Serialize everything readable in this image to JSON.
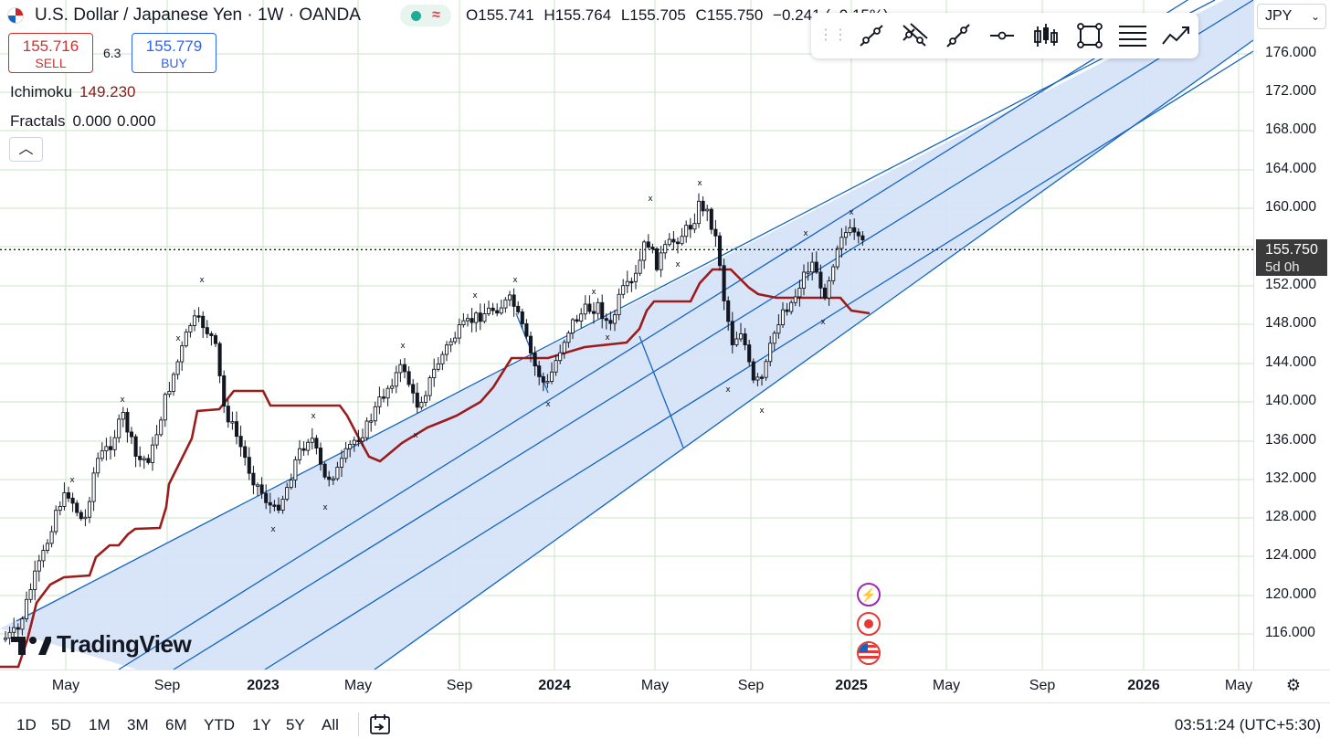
{
  "header": {
    "symbol_title": "U.S. Dollar / Japanese Yen · 1W · OANDA",
    "ohlc": {
      "o_label": "O",
      "o": "155.741",
      "h_label": "H",
      "h": "155.764",
      "l_label": "L",
      "l": "155.705",
      "c_label": "C",
      "c": "155.750",
      "change": "−0.241 (−0.15%)"
    }
  },
  "trade": {
    "sell_price": "155.716",
    "sell_label": "SELL",
    "spread": "6.3",
    "buy_price": "155.779",
    "buy_label": "BUY"
  },
  "indicators": [
    {
      "name": "Ichimoku",
      "value": "149.230"
    },
    {
      "name": "Fractals",
      "value1": "0.000",
      "value2": "0.000"
    }
  ],
  "drawing_toolbar": {
    "tools": [
      "trend-line-icon",
      "parallel-channel-icon",
      "ray-icon",
      "horizontal-ray-icon",
      "candles-icon",
      "rectangle-icon",
      "fib-lines-icon",
      "forecast-icon"
    ]
  },
  "price_axis": {
    "currency": "JPY",
    "labels": [
      "176.000",
      "172.000",
      "168.000",
      "164.000",
      "160.000",
      "152.000",
      "148.000",
      "144.000",
      "140.000",
      "136.000",
      "132.000",
      "128.000",
      "124.000",
      "120.000",
      "116.000"
    ],
    "current_price": "155.750",
    "countdown": "5d 0h"
  },
  "time_axis": {
    "labels": [
      {
        "t": "May",
        "bold": false
      },
      {
        "t": "Sep",
        "bold": false
      },
      {
        "t": "2023",
        "bold": true
      },
      {
        "t": "May",
        "bold": false
      },
      {
        "t": "Sep",
        "bold": false
      },
      {
        "t": "2024",
        "bold": true
      },
      {
        "t": "May",
        "bold": false
      },
      {
        "t": "Sep",
        "bold": false
      },
      {
        "t": "2025",
        "bold": true
      },
      {
        "t": "May",
        "bold": false
      },
      {
        "t": "Sep",
        "bold": false
      },
      {
        "t": "2026",
        "bold": true
      },
      {
        "t": "May",
        "bold": false
      }
    ]
  },
  "ranges": [
    "1D",
    "5D",
    "1M",
    "3M",
    "6M",
    "YTD",
    "1Y",
    "5Y",
    "All"
  ],
  "clock": "03:51:24 (UTC+5:30)",
  "brand": "TradingView",
  "events": [
    "lightning-event-icon",
    "record-event-icon",
    "us-flag-event-icon"
  ],
  "colors": {
    "channel_fill": "#d6e3f8",
    "channel_line": "#1565c0",
    "ichimoku": "#9c1c1c",
    "candle": "#131722",
    "grid": "#c8e6c9"
  },
  "chart_data": {
    "type": "candlestick",
    "ylim": [
      112,
      180
    ],
    "xrange": [
      "2022-03",
      "2026-05"
    ],
    "ichimoku_last": 149.23,
    "last_close": 155.75
  }
}
